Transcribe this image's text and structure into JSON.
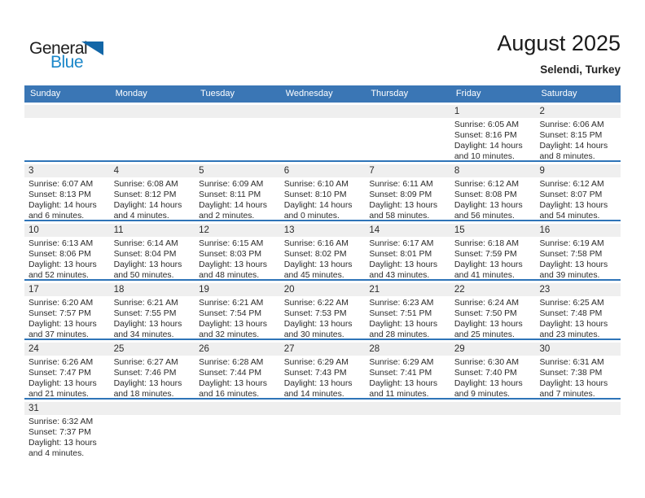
{
  "logo": {
    "line1": "General",
    "line2": "Blue"
  },
  "header": {
    "title": "August 2025",
    "subtitle": "Selendi, Turkey"
  },
  "colors": {
    "header_bg": "#3a76b5",
    "row_divider": "#2e74b8",
    "day_strip_bg": "#efefef",
    "logo_triangle": "#1266a7",
    "logo_blue": "#1b87c9"
  },
  "calendar": {
    "day_headers": [
      "Sunday",
      "Monday",
      "Tuesday",
      "Wednesday",
      "Thursday",
      "Friday",
      "Saturday"
    ],
    "weeks": [
      [
        null,
        null,
        null,
        null,
        null,
        {
          "day": "1",
          "sunrise": "Sunrise: 6:05 AM",
          "sunset": "Sunset: 8:16 PM",
          "daylight1": "Daylight: 14 hours",
          "daylight2": "and 10 minutes."
        },
        {
          "day": "2",
          "sunrise": "Sunrise: 6:06 AM",
          "sunset": "Sunset: 8:15 PM",
          "daylight1": "Daylight: 14 hours",
          "daylight2": "and 8 minutes."
        }
      ],
      [
        {
          "day": "3",
          "sunrise": "Sunrise: 6:07 AM",
          "sunset": "Sunset: 8:13 PM",
          "daylight1": "Daylight: 14 hours",
          "daylight2": "and 6 minutes."
        },
        {
          "day": "4",
          "sunrise": "Sunrise: 6:08 AM",
          "sunset": "Sunset: 8:12 PM",
          "daylight1": "Daylight: 14 hours",
          "daylight2": "and 4 minutes."
        },
        {
          "day": "5",
          "sunrise": "Sunrise: 6:09 AM",
          "sunset": "Sunset: 8:11 PM",
          "daylight1": "Daylight: 14 hours",
          "daylight2": "and 2 minutes."
        },
        {
          "day": "6",
          "sunrise": "Sunrise: 6:10 AM",
          "sunset": "Sunset: 8:10 PM",
          "daylight1": "Daylight: 14 hours",
          "daylight2": "and 0 minutes."
        },
        {
          "day": "7",
          "sunrise": "Sunrise: 6:11 AM",
          "sunset": "Sunset: 8:09 PM",
          "daylight1": "Daylight: 13 hours",
          "daylight2": "and 58 minutes."
        },
        {
          "day": "8",
          "sunrise": "Sunrise: 6:12 AM",
          "sunset": "Sunset: 8:08 PM",
          "daylight1": "Daylight: 13 hours",
          "daylight2": "and 56 minutes."
        },
        {
          "day": "9",
          "sunrise": "Sunrise: 6:12 AM",
          "sunset": "Sunset: 8:07 PM",
          "daylight1": "Daylight: 13 hours",
          "daylight2": "and 54 minutes."
        }
      ],
      [
        {
          "day": "10",
          "sunrise": "Sunrise: 6:13 AM",
          "sunset": "Sunset: 8:06 PM",
          "daylight1": "Daylight: 13 hours",
          "daylight2": "and 52 minutes."
        },
        {
          "day": "11",
          "sunrise": "Sunrise: 6:14 AM",
          "sunset": "Sunset: 8:04 PM",
          "daylight1": "Daylight: 13 hours",
          "daylight2": "and 50 minutes."
        },
        {
          "day": "12",
          "sunrise": "Sunrise: 6:15 AM",
          "sunset": "Sunset: 8:03 PM",
          "daylight1": "Daylight: 13 hours",
          "daylight2": "and 48 minutes."
        },
        {
          "day": "13",
          "sunrise": "Sunrise: 6:16 AM",
          "sunset": "Sunset: 8:02 PM",
          "daylight1": "Daylight: 13 hours",
          "daylight2": "and 45 minutes."
        },
        {
          "day": "14",
          "sunrise": "Sunrise: 6:17 AM",
          "sunset": "Sunset: 8:01 PM",
          "daylight1": "Daylight: 13 hours",
          "daylight2": "and 43 minutes."
        },
        {
          "day": "15",
          "sunrise": "Sunrise: 6:18 AM",
          "sunset": "Sunset: 7:59 PM",
          "daylight1": "Daylight: 13 hours",
          "daylight2": "and 41 minutes."
        },
        {
          "day": "16",
          "sunrise": "Sunrise: 6:19 AM",
          "sunset": "Sunset: 7:58 PM",
          "daylight1": "Daylight: 13 hours",
          "daylight2": "and 39 minutes."
        }
      ],
      [
        {
          "day": "17",
          "sunrise": "Sunrise: 6:20 AM",
          "sunset": "Sunset: 7:57 PM",
          "daylight1": "Daylight: 13 hours",
          "daylight2": "and 37 minutes."
        },
        {
          "day": "18",
          "sunrise": "Sunrise: 6:21 AM",
          "sunset": "Sunset: 7:55 PM",
          "daylight1": "Daylight: 13 hours",
          "daylight2": "and 34 minutes."
        },
        {
          "day": "19",
          "sunrise": "Sunrise: 6:21 AM",
          "sunset": "Sunset: 7:54 PM",
          "daylight1": "Daylight: 13 hours",
          "daylight2": "and 32 minutes."
        },
        {
          "day": "20",
          "sunrise": "Sunrise: 6:22 AM",
          "sunset": "Sunset: 7:53 PM",
          "daylight1": "Daylight: 13 hours",
          "daylight2": "and 30 minutes."
        },
        {
          "day": "21",
          "sunrise": "Sunrise: 6:23 AM",
          "sunset": "Sunset: 7:51 PM",
          "daylight1": "Daylight: 13 hours",
          "daylight2": "and 28 minutes."
        },
        {
          "day": "22",
          "sunrise": "Sunrise: 6:24 AM",
          "sunset": "Sunset: 7:50 PM",
          "daylight1": "Daylight: 13 hours",
          "daylight2": "and 25 minutes."
        },
        {
          "day": "23",
          "sunrise": "Sunrise: 6:25 AM",
          "sunset": "Sunset: 7:48 PM",
          "daylight1": "Daylight: 13 hours",
          "daylight2": "and 23 minutes."
        }
      ],
      [
        {
          "day": "24",
          "sunrise": "Sunrise: 6:26 AM",
          "sunset": "Sunset: 7:47 PM",
          "daylight1": "Daylight: 13 hours",
          "daylight2": "and 21 minutes."
        },
        {
          "day": "25",
          "sunrise": "Sunrise: 6:27 AM",
          "sunset": "Sunset: 7:46 PM",
          "daylight1": "Daylight: 13 hours",
          "daylight2": "and 18 minutes."
        },
        {
          "day": "26",
          "sunrise": "Sunrise: 6:28 AM",
          "sunset": "Sunset: 7:44 PM",
          "daylight1": "Daylight: 13 hours",
          "daylight2": "and 16 minutes."
        },
        {
          "day": "27",
          "sunrise": "Sunrise: 6:29 AM",
          "sunset": "Sunset: 7:43 PM",
          "daylight1": "Daylight: 13 hours",
          "daylight2": "and 14 minutes."
        },
        {
          "day": "28",
          "sunrise": "Sunrise: 6:29 AM",
          "sunset": "Sunset: 7:41 PM",
          "daylight1": "Daylight: 13 hours",
          "daylight2": "and 11 minutes."
        },
        {
          "day": "29",
          "sunrise": "Sunrise: 6:30 AM",
          "sunset": "Sunset: 7:40 PM",
          "daylight1": "Daylight: 13 hours",
          "daylight2": "and 9 minutes."
        },
        {
          "day": "30",
          "sunrise": "Sunrise: 6:31 AM",
          "sunset": "Sunset: 7:38 PM",
          "daylight1": "Daylight: 13 hours",
          "daylight2": "and 7 minutes."
        }
      ],
      [
        {
          "day": "31",
          "sunrise": "Sunrise: 6:32 AM",
          "sunset": "Sunset: 7:37 PM",
          "daylight1": "Daylight: 13 hours",
          "daylight2": "and 4 minutes."
        },
        null,
        null,
        null,
        null,
        null,
        null
      ]
    ]
  }
}
